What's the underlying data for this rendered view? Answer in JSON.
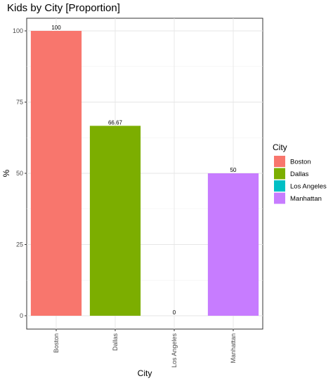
{
  "chart_data": {
    "type": "bar",
    "title": "Kids by City [Proportion]",
    "xlabel": "City",
    "ylabel": "%",
    "categories": [
      "Boston",
      "Dallas",
      "Los Angeles",
      "Manhattan"
    ],
    "values": [
      100,
      66.67,
      0,
      50
    ],
    "data_labels": [
      "100",
      "66.67",
      "0",
      "50"
    ],
    "yticks": [
      0,
      25,
      50,
      75,
      100
    ],
    "ylim": [
      -1.5,
      105
    ],
    "grid": true,
    "legend": {
      "title": "City",
      "placement": "right",
      "entries": [
        "Boston",
        "Dallas",
        "Los Angeles",
        "Manhattan"
      ]
    },
    "colors": [
      "#F8766D",
      "#7CAE00",
      "#00BFC4",
      "#C77CFF"
    ]
  }
}
